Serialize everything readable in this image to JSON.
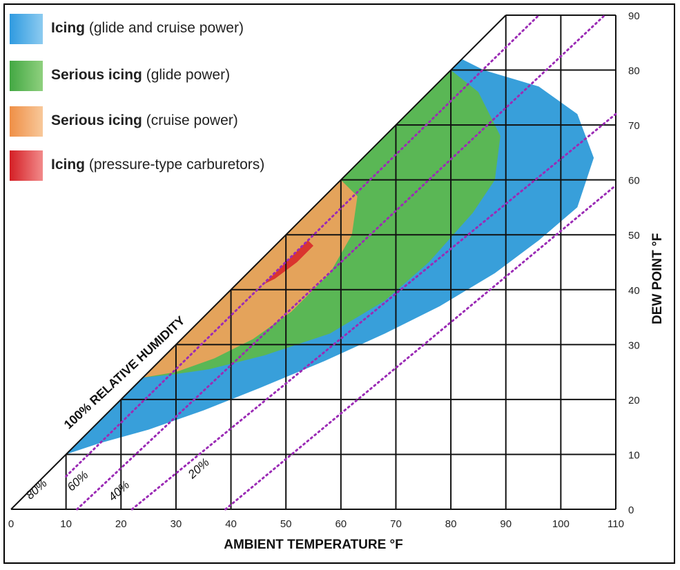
{
  "chart_data": {
    "type": "area",
    "xlabel": "AMBIENT TEMPERATURE  °F",
    "ylabel": "DEW POINT  °F",
    "xlim": [
      0,
      110
    ],
    "ylim": [
      0,
      90
    ],
    "x_ticks": [
      "0",
      "10",
      "20",
      "30",
      "40",
      "50",
      "60",
      "70",
      "80",
      "90",
      "100",
      "110"
    ],
    "y_ticks": [
      "0",
      "10",
      "20",
      "30",
      "40",
      "50",
      "60",
      "70",
      "80",
      "90"
    ],
    "grid": true,
    "legend_position": "top-left",
    "saturation_line_label": "100% RELATIVE HUMIDITY",
    "relative_humidity_lines": [
      {
        "label": "80%",
        "points": [
          [
            10,
            6
          ],
          [
            96,
            90
          ]
        ]
      },
      {
        "label": "60%",
        "points": [
          [
            12,
            0
          ],
          [
            108,
            90
          ]
        ]
      },
      {
        "label": "40%",
        "points": [
          [
            22,
            0
          ],
          [
            110,
            72
          ]
        ]
      },
      {
        "label": "20%",
        "points": [
          [
            39,
            0
          ],
          [
            110,
            59
          ]
        ]
      }
    ],
    "regions": [
      {
        "name": "Icing",
        "qualifier": "(glide and cruise power)",
        "color": "#2d9ad8",
        "boundary": [
          [
            10,
            10
          ],
          [
            82,
            82
          ],
          [
            86,
            80
          ],
          [
            96,
            77
          ],
          [
            103,
            72
          ],
          [
            106,
            64
          ],
          [
            103,
            55
          ],
          [
            96,
            49
          ],
          [
            88,
            43
          ],
          [
            78,
            37
          ],
          [
            68,
            32
          ],
          [
            57,
            27
          ],
          [
            45,
            22
          ],
          [
            35,
            18
          ],
          [
            25,
            14.5
          ],
          [
            16,
            12
          ],
          [
            10,
            10
          ]
        ]
      },
      {
        "name": "Serious icing",
        "qualifier": "(glide power)",
        "color": "#5db94a",
        "boundary": [
          [
            24,
            24
          ],
          [
            80,
            80
          ],
          [
            85,
            76
          ],
          [
            89,
            68
          ],
          [
            88,
            60
          ],
          [
            84,
            54
          ],
          [
            76,
            45
          ],
          [
            68,
            38
          ],
          [
            58,
            32
          ],
          [
            46,
            28
          ],
          [
            36,
            25.5
          ],
          [
            29,
            24.5
          ],
          [
            24,
            24
          ]
        ]
      },
      {
        "name": "Serious icing",
        "qualifier": "(cruise power)",
        "color": "#f0a15c",
        "boundary": [
          [
            24,
            24
          ],
          [
            60,
            60
          ],
          [
            63,
            57
          ],
          [
            62,
            50
          ],
          [
            58,
            43
          ],
          [
            51,
            36
          ],
          [
            44,
            31
          ],
          [
            37,
            27.5
          ],
          [
            30,
            25
          ],
          [
            24,
            24
          ]
        ]
      },
      {
        "name": "Icing",
        "qualifier": "(pressure-type carburetors)",
        "color": "#d92a2a",
        "boundary": [
          [
            46,
            41
          ],
          [
            50,
            45
          ],
          [
            54,
            49
          ],
          [
            55,
            48
          ],
          [
            52,
            45
          ],
          [
            48,
            42
          ],
          [
            46,
            41
          ]
        ]
      }
    ]
  },
  "legend": [
    {
      "bold": "Icing",
      "rest": " (glide and cruise power)",
      "color_top": "#3ba7e3",
      "color_bottom": "#7fc3ee"
    },
    {
      "bold": "Serious icing",
      "rest": " (glide power)",
      "color_top": "#4cb04a",
      "color_bottom": "#86cf78"
    },
    {
      "bold": "Serious icing",
      "rest": " (cruise power)",
      "color_top": "#f29a55",
      "color_bottom": "#f7c08f"
    },
    {
      "bold": "Icing",
      "rest": " (pressure-type carburetors)",
      "color_top": "#d7262b",
      "color_bottom": "#f07a7a"
    }
  ]
}
